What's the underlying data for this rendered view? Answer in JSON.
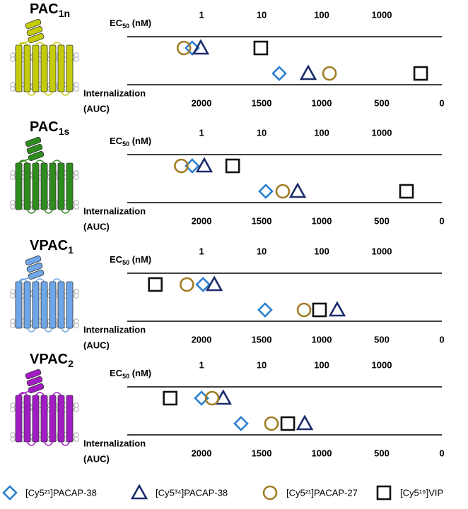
{
  "chart_data": [
    {
      "type": "strip",
      "title": {
        "text": "PAC",
        "sub": "1n"
      },
      "color": "#c4cc0a",
      "x_label": {
        "text": "EC",
        "sub": "50",
        "rest": " (nM)"
      },
      "xscale": "log",
      "xlim": [
        0.058,
        10000
      ],
      "xticks": [
        1,
        10,
        100,
        1000
      ],
      "x2_label": [
        "Internalization",
        "(AUC)"
      ],
      "x2lim": [
        2618,
        0
      ],
      "x2ticks": [
        2000,
        1500,
        1000,
        500,
        0
      ],
      "ec50": [
        0.7,
        0.97,
        0.51,
        9.7
      ],
      "internalization": [
        1353,
        1112,
        935,
        176
      ]
    },
    {
      "type": "strip",
      "title": {
        "text": "PAC",
        "sub": "1s"
      },
      "color": "#2e8b1e",
      "x_label": {
        "text": "EC",
        "sub": "50",
        "rest": " (nM)"
      },
      "xscale": "log",
      "xlim": [
        0.058,
        10000
      ],
      "xticks": [
        1,
        10,
        100,
        1000
      ],
      "x2_label": [
        "Internalization",
        "(AUC)"
      ],
      "x2lim": [
        2618,
        0
      ],
      "x2ticks": [
        2000,
        1500,
        1000,
        500,
        0
      ],
      "ec50": [
        0.7,
        1.11,
        0.46,
        3.3
      ],
      "internalization": [
        1465,
        1200,
        1324,
        294
      ]
    },
    {
      "type": "strip",
      "title": {
        "text": "VPAC",
        "sub": "1"
      },
      "color": "#6ea6e8",
      "x_label": {
        "text": "EC",
        "sub": "50",
        "rest": " (nM)"
      },
      "xscale": "log",
      "xlim": [
        0.058,
        10000
      ],
      "xticks": [
        1,
        10,
        100,
        1000
      ],
      "x2_label": [
        "Internalization",
        "(AUC)"
      ],
      "x2lim": [
        2618,
        0
      ],
      "x2ticks": [
        2000,
        1500,
        1000,
        500,
        0
      ],
      "ec50": [
        1.06,
        1.63,
        0.57,
        0.17
      ],
      "internalization": [
        1471,
        871,
        1147,
        1018
      ]
    },
    {
      "type": "strip",
      "title": {
        "text": "VPAC",
        "sub": "2"
      },
      "color": "#a21cc4",
      "x_label": {
        "text": "EC",
        "sub": "50",
        "rest": " (nM)"
      },
      "xscale": "log",
      "xlim": [
        0.058,
        10000
      ],
      "xticks": [
        1,
        10,
        100,
        1000
      ],
      "x2_label": [
        "Internalization",
        "(AUC)"
      ],
      "x2lim": [
        2618,
        0
      ],
      "x2ticks": [
        2000,
        1500,
        1000,
        500,
        0
      ],
      "ec50": [
        1.0,
        2.3,
        1.5,
        0.3
      ],
      "internalization": [
        1671,
        1141,
        1418,
        1282
      ]
    }
  ],
  "series": [
    {
      "name": "[Cy5²¹]PACAP-38",
      "color": "#2a7fd0",
      "marker": "diamond"
    },
    {
      "name": "[Cy5³⁴]PACAP-38",
      "color": "#1c2b6b",
      "marker": "triangle"
    },
    {
      "name": "[Cy5²¹]PACAP-27",
      "color": "#a07c22",
      "marker": "circle"
    },
    {
      "name": "[Cy5¹⁹]VIP",
      "color": "#111111",
      "marker": "square"
    }
  ]
}
